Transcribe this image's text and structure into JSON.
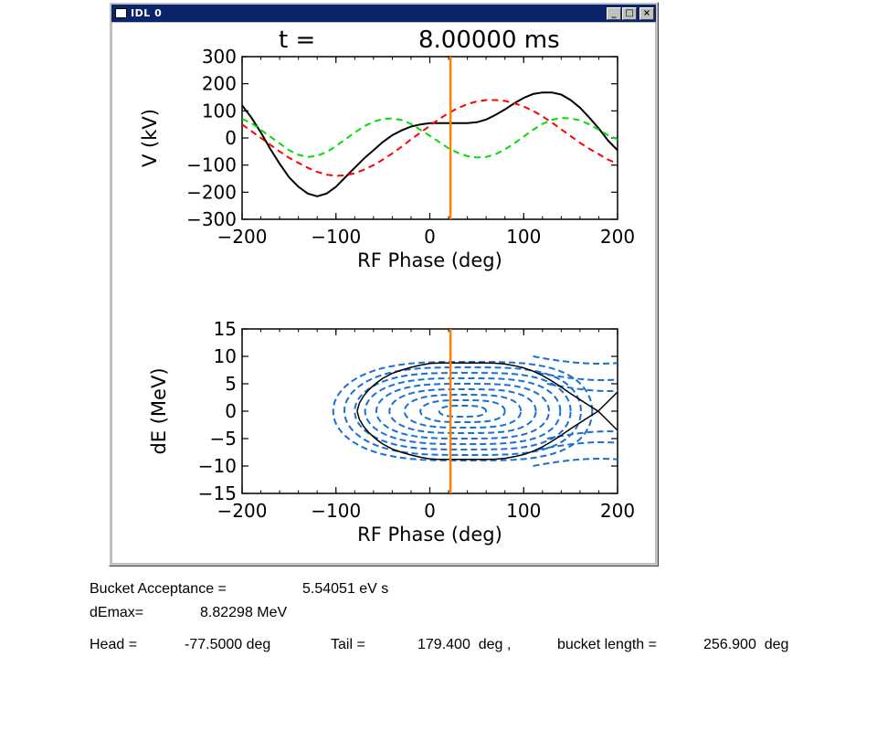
{
  "window": {
    "title": "IDL 0",
    "buttons": {
      "minimize": "_",
      "maximize": "□",
      "close": "×"
    }
  },
  "plot": {
    "time_label": "t =",
    "time_value": "8.00000 ms",
    "marker_color": "#ff8000"
  },
  "chart_data": [
    {
      "type": "line",
      "title": "t = 8.00000 ms",
      "xlabel": "RF Phase (deg)",
      "ylabel": "V (kV)",
      "xlim": [
        -200,
        200
      ],
      "ylim": [
        -300,
        300
      ],
      "xticks": [
        "−200",
        "−100",
        "0",
        "100",
        "200"
      ],
      "yticks": [
        "300",
        "200",
        "100",
        "0",
        "−100",
        "−200",
        "−300"
      ],
      "marker_line_x": 22,
      "grid": false,
      "series": [
        {
          "style": "solid",
          "color": "#000000",
          "x": [
            -200,
            -190,
            -180,
            -170,
            -160,
            -150,
            -140,
            -130,
            -120,
            -110,
            -100,
            -90,
            -80,
            -70,
            -60,
            -50,
            -40,
            -30,
            -20,
            -10,
            0,
            10,
            20,
            30,
            40,
            50,
            60,
            70,
            80,
            90,
            100,
            110,
            120,
            130,
            140,
            150,
            160,
            170,
            180,
            190,
            200
          ],
          "y": [
            120,
            75,
            20,
            -40,
            -95,
            -145,
            -180,
            -205,
            -215,
            -205,
            -180,
            -145,
            -110,
            -75,
            -45,
            -15,
            10,
            28,
            42,
            50,
            55,
            55,
            55,
            55,
            55,
            58,
            68,
            85,
            105,
            128,
            148,
            162,
            168,
            168,
            160,
            140,
            112,
            75,
            35,
            -10,
            -45
          ]
        },
        {
          "style": "dashed",
          "color": "#ff0000",
          "x": [
            -200,
            -190,
            -180,
            -170,
            -160,
            -150,
            -140,
            -130,
            -120,
            -110,
            -100,
            -90,
            -80,
            -70,
            -60,
            -50,
            -40,
            -30,
            -20,
            -10,
            0,
            10,
            20,
            30,
            40,
            50,
            60,
            70,
            80,
            90,
            100,
            110,
            120,
            130,
            140,
            150,
            160,
            170,
            180,
            190,
            200
          ],
          "y": [
            50,
            25,
            0,
            -25,
            -50,
            -73,
            -92,
            -110,
            -125,
            -135,
            -140,
            -138,
            -130,
            -117,
            -100,
            -80,
            -57,
            -32,
            -5,
            20,
            45,
            70,
            92,
            110,
            125,
            135,
            140,
            140,
            137,
            128,
            116,
            100,
            80,
            57,
            32,
            7,
            -18,
            -40,
            -60,
            -80,
            -95
          ]
        },
        {
          "style": "dashed",
          "color": "#00dd00",
          "x": [
            -200,
            -190,
            -180,
            -170,
            -160,
            -150,
            -140,
            -130,
            -120,
            -110,
            -100,
            -90,
            -80,
            -70,
            -60,
            -50,
            -40,
            -30,
            -20,
            -10,
            0,
            10,
            20,
            30,
            40,
            50,
            60,
            70,
            80,
            90,
            100,
            110,
            120,
            130,
            140,
            150,
            160,
            170,
            180,
            190,
            200
          ],
          "y": [
            70,
            55,
            30,
            5,
            -20,
            -45,
            -62,
            -70,
            -66,
            -52,
            -30,
            -5,
            20,
            43,
            60,
            70,
            72,
            66,
            52,
            30,
            8,
            -15,
            -38,
            -55,
            -67,
            -72,
            -70,
            -60,
            -42,
            -20,
            5,
            30,
            52,
            67,
            74,
            72,
            65,
            50,
            30,
            10,
            -5
          ]
        }
      ]
    },
    {
      "type": "line",
      "xlabel": "RF Phase (deg)",
      "ylabel": "dE (MeV)",
      "xlim": [
        -200,
        200
      ],
      "ylim": [
        -15,
        15
      ],
      "xticks": [
        "−200",
        "−100",
        "0",
        "100",
        "200"
      ],
      "yticks": [
        "15",
        "10",
        "5",
        "0",
        "−5",
        "−10",
        "−15"
      ],
      "marker_line_x": 22,
      "grid": false,
      "separatrix": {
        "color": "#000000",
        "head_x": -77.5,
        "tail_x": 179.4,
        "dEmax": 8.82298,
        "x": [
          -77.5,
          -75,
          -70,
          -65,
          -60,
          -55,
          -50,
          -40,
          -30,
          -20,
          -10,
          0,
          10,
          20,
          30,
          40,
          50,
          60,
          70,
          80,
          90,
          100,
          110,
          120,
          130,
          140,
          150,
          160,
          170,
          179.4
        ],
        "upper": [
          0,
          1.5,
          2.9,
          3.9,
          4.7,
          5.4,
          6.0,
          6.9,
          7.5,
          8.0,
          8.4,
          8.7,
          8.8,
          8.8,
          8.8,
          8.8,
          8.8,
          8.8,
          8.75,
          8.6,
          8.3,
          7.9,
          7.3,
          6.5,
          5.5,
          4.4,
          3.2,
          2.1,
          1.0,
          0
        ]
      },
      "separatrix_tail_lines": [
        {
          "x": [
            179.4,
            200
          ],
          "y": [
            0,
            3.5
          ]
        },
        {
          "x": [
            179.4,
            200
          ],
          "y": [
            0,
            -3.5
          ]
        }
      ],
      "trajectory_style": {
        "color": "#1a6fd6",
        "style": "dashed"
      },
      "trajectories_dEmax": [
        1.0,
        2.0,
        3.0,
        4.0,
        5.0,
        6.0,
        7.0,
        8.0,
        9.0
      ],
      "trajectories_xhalf": [
        25,
        45,
        62,
        78,
        92,
        104,
        115,
        126,
        138
      ]
    }
  ],
  "info": {
    "acceptance_label": "Bucket Acceptance =",
    "acceptance_value": "5.54051 eV s",
    "demax_label": "dEmax=",
    "demax_value": "8.82298 MeV",
    "head_label": "Head =",
    "head_value": "-77.5000 deg",
    "tail_label": "Tail =",
    "tail_value": "179.400  deg ,",
    "length_label": "bucket length =",
    "length_value": "256.900  deg"
  }
}
